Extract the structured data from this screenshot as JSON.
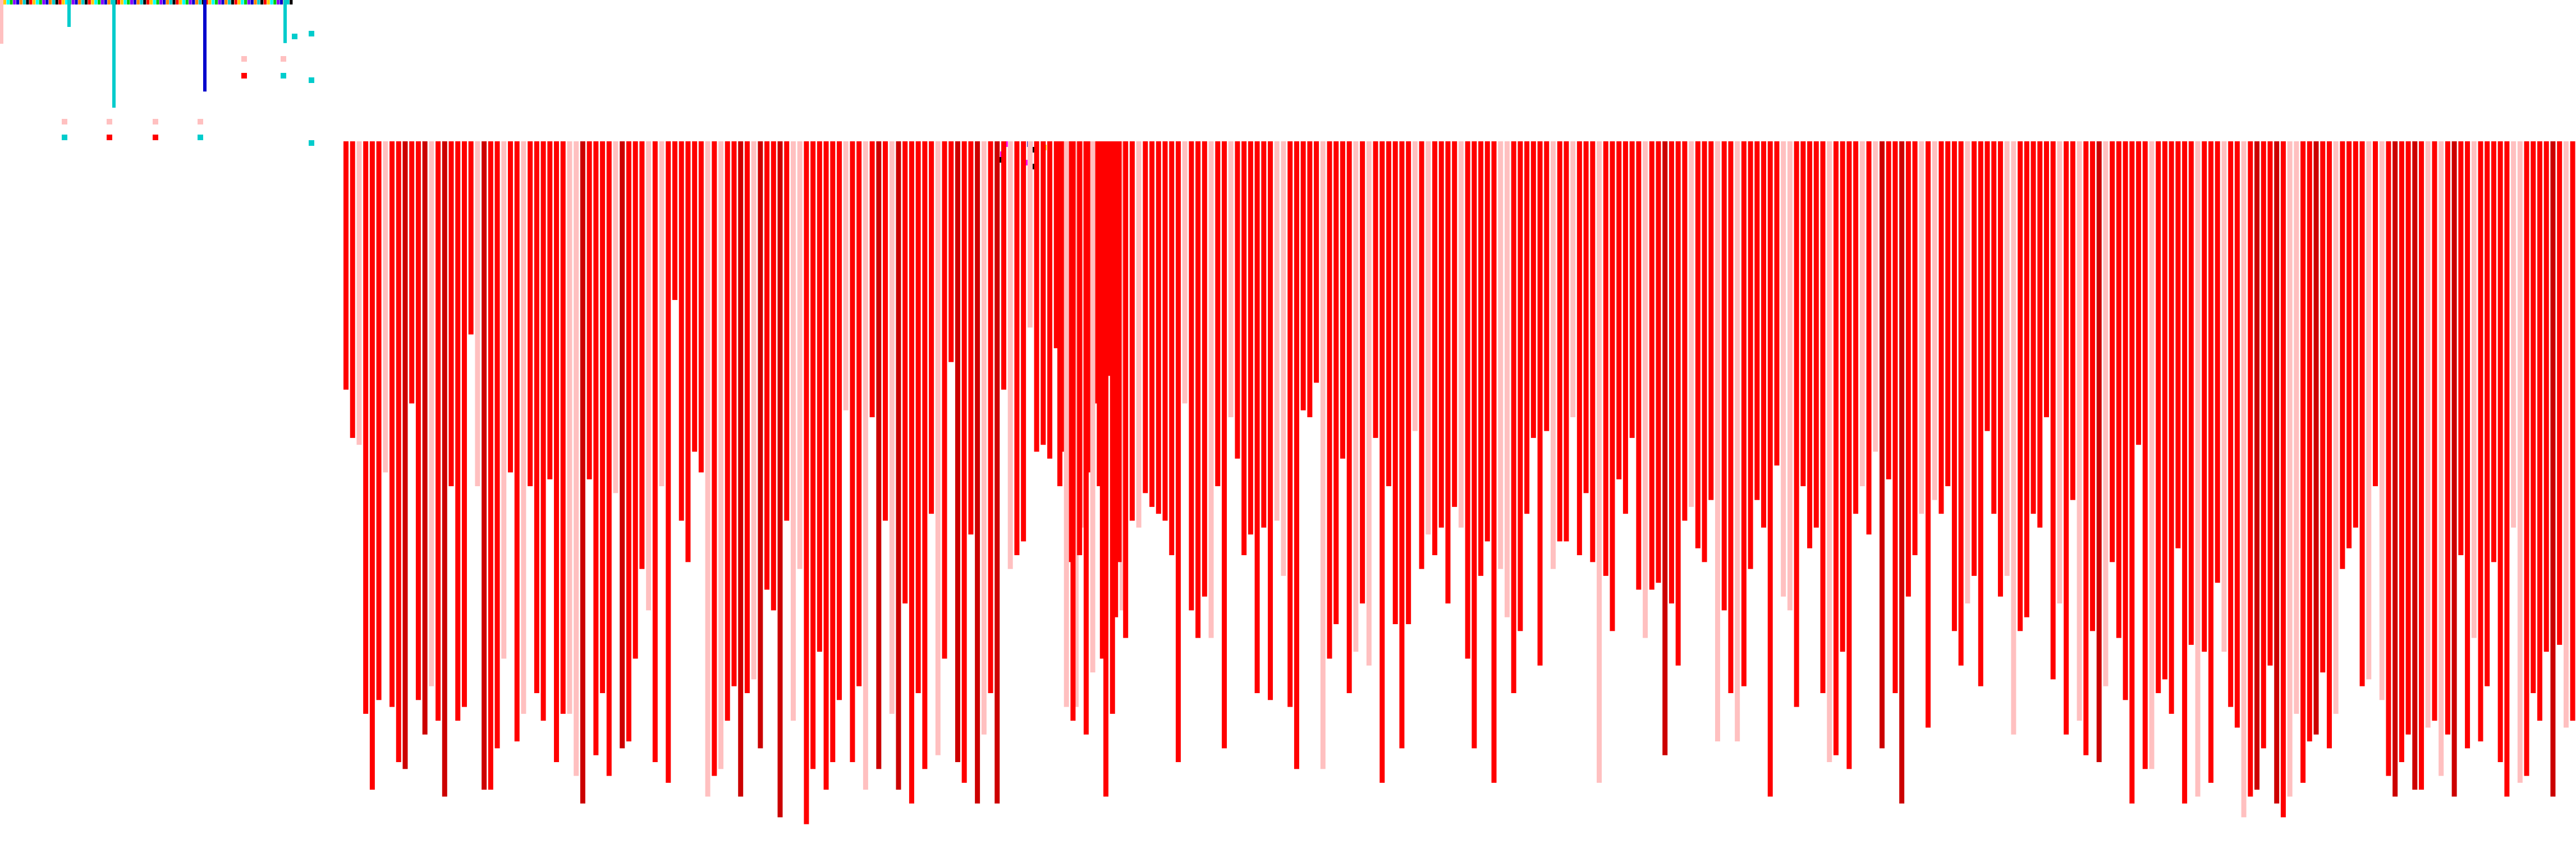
{
  "chart_data": {
    "type": "bar",
    "title": "",
    "xlabel": "",
    "ylabel": "",
    "legend": "none",
    "grid": false,
    "orientation": "downward",
    "ylim": [
      0,
      100
    ],
    "colors": {
      "primary": "#ff0000",
      "dark": "#cc0000",
      "light": "#ffc0c0",
      "accent_cyan": "#00cccc",
      "accent_blue": "#0000cc"
    },
    "groups": [
      {
        "name": "",
        "values": [
          36,
          43,
          44,
          83,
          94,
          81,
          48,
          82,
          90,
          91,
          38,
          81,
          86,
          79,
          84,
          95,
          50,
          84,
          82,
          28,
          50,
          94,
          94,
          88,
          75,
          48,
          87,
          83,
          50,
          80,
          84,
          49,
          90,
          83,
          83,
          92,
          96,
          49,
          89,
          80,
          92,
          51,
          88,
          87,
          75,
          62,
          68,
          90,
          50,
          93,
          23,
          55,
          61,
          45,
          48,
          95,
          92,
          91,
          84,
          79,
          95,
          80,
          78,
          88,
          65,
          68,
          98,
          55,
          84,
          62,
          99,
          91,
          74,
          94,
          90,
          81,
          39,
          90,
          79,
          94,
          40,
          91,
          55,
          83,
          94,
          67,
          96,
          80,
          91,
          54,
          89,
          75,
          32,
          90,
          93,
          57,
          96,
          86,
          80,
          96,
          36,
          62,
          60,
          58,
          27,
          45,
          44,
          46,
          30,
          45,
          61,
          82,
          56,
          48,
          38,
          75,
          34,
          69,
          68
        ]
      },
      {
        "name": "",
        "values": [
          50,
          82,
          84,
          60,
          86,
          77,
          50,
          95,
          83,
          61,
          72,
          55,
          56,
          51,
          53,
          54,
          55,
          60,
          90,
          38,
          68,
          72,
          66,
          72,
          50,
          88,
          40,
          46,
          60,
          57,
          80,
          56,
          81,
          55,
          63,
          82,
          91,
          39,
          40,
          35,
          91,
          75,
          70,
          46,
          80,
          74,
          67,
          76,
          43,
          93,
          50,
          70,
          88,
          70,
          42,
          62,
          57,
          60,
          56,
          67,
          53,
          56,
          75,
          88,
          63,
          58,
          93,
          62,
          69,
          80,
          71,
          54,
          43,
          76,
          42,
          62,
          58,
          58,
          40,
          60,
          51,
          61,
          93,
          63,
          71,
          49,
          54,
          43,
          65,
          72,
          65,
          64,
          89,
          67,
          76,
          55,
          53,
          59,
          61,
          52,
          87,
          68,
          80,
          87,
          79,
          62,
          52,
          56,
          95,
          47,
          66,
          68,
          82,
          50,
          59,
          56,
          80,
          90,
          89,
          74,
          91,
          54,
          50,
          57,
          45,
          88,
          49,
          80,
          96,
          66,
          60,
          54,
          85,
          52,
          54,
          50,
          71,
          76,
          67,
          63,
          79,
          42,
          54,
          66,
          63,
          86,
          71,
          69,
          54,
          56,
          40,
          78,
          67,
          86,
          52,
          84,
          89,
          71,
          90,
          79,
          61,
          72,
          81,
          96,
          44,
          91,
          91,
          80,
          78,
          83,
          59,
          96,
          73,
          95,
          74,
          93,
          64,
          74,
          82,
          85,
          98,
          95,
          94,
          88,
          76,
          96,
          98,
          95,
          83,
          93,
          87,
          86,
          77,
          88,
          83,
          62,
          59,
          56,
          79,
          78,
          50,
          81,
          92,
          95,
          90,
          86,
          94,
          94,
          85,
          84,
          92,
          86,
          95,
          60,
          88,
          72,
          87,
          79,
          61,
          90,
          95,
          56,
          93,
          92,
          80,
          84,
          74,
          95,
          73,
          85,
          84,
          99,
          82,
          79,
          76,
          82,
          90,
          95,
          89,
          81,
          80,
          95,
          92,
          95,
          98,
          99,
          93,
          83,
          97,
          96
        ]
      }
    ],
    "top_strip": {
      "colors": [
        "#ff0000",
        "#00cccc",
        "#0000cc",
        "#ff00ff",
        "#00cc00",
        "#ffcc00",
        "#000000",
        "#ffc0c0",
        "#ff8800",
        "#8800ff",
        "#00ffff",
        "#cc0000"
      ],
      "rules": [
        {
          "value": 0.2,
          "color": "#00cccc"
        },
        {
          "value": 0.8,
          "color": "#00cccc"
        },
        {
          "value": 0.68,
          "color": "#0000cc"
        },
        {
          "value": 0.32,
          "color": "#00cccc"
        }
      ]
    }
  }
}
